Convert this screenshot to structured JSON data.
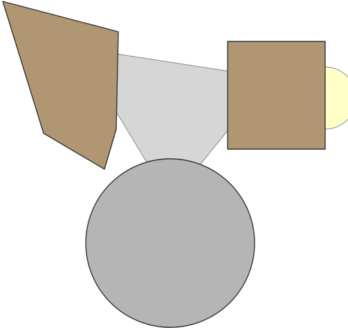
{
  "colors": {
    "background": "#ffffff",
    "trapezoid_fill": "#d6d6d6",
    "trapezoid_stroke": "#8c8c8c",
    "brown_fill": "#b09673",
    "brown_stroke": "#333333",
    "circle_fill": "#b5b5b5",
    "circle_stroke": "#333333",
    "semicircle_fill": "#ffffc8",
    "semicircle_stroke": "#999999"
  },
  "shapes": [
    {
      "name": "connector-trapezoid",
      "kind": "polygon"
    },
    {
      "name": "left-pentagon",
      "kind": "polygon"
    },
    {
      "name": "right-square",
      "kind": "rect"
    },
    {
      "name": "right-semicircle",
      "kind": "semicircle"
    },
    {
      "name": "bottom-circle",
      "kind": "circle"
    }
  ]
}
